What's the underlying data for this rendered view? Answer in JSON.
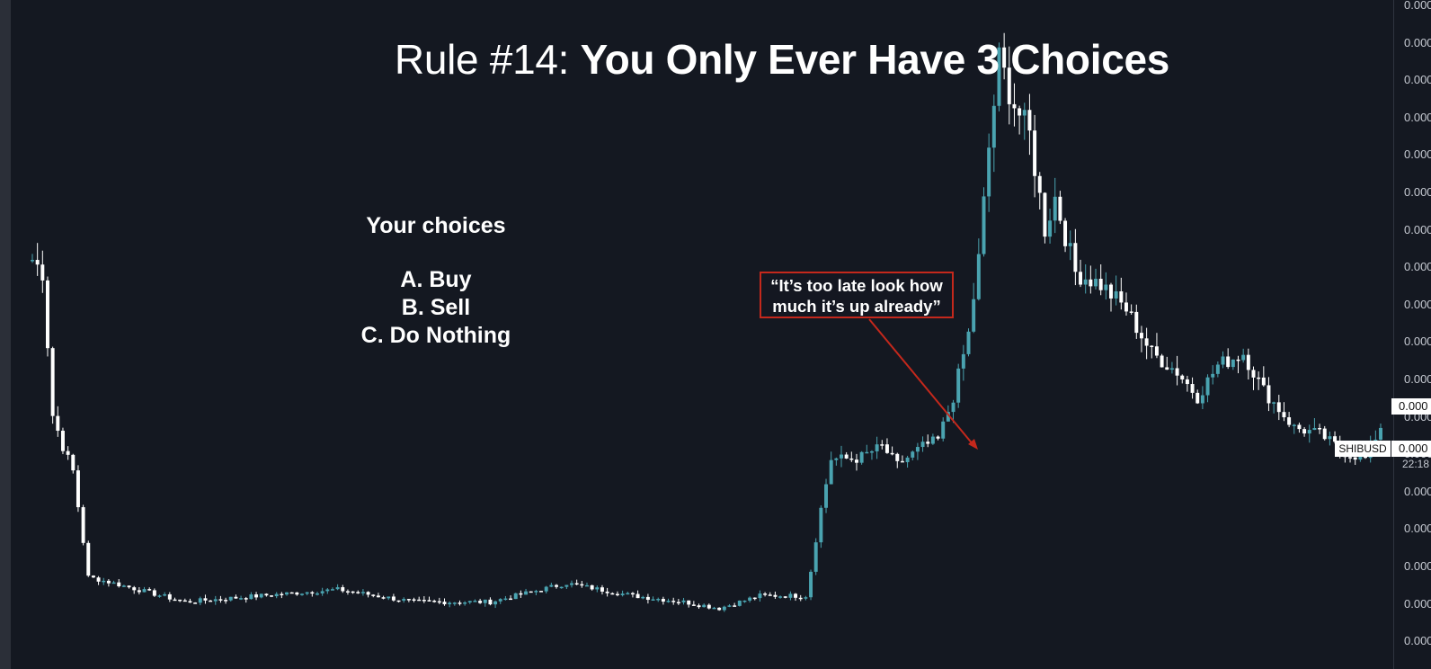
{
  "slide": {
    "title_prefix": "Rule #14: ",
    "title_main": "You Only Ever Have 3 Choices",
    "choices_heading": "Your choices",
    "choices": [
      "A. Buy",
      "B. Sell",
      "C. Do Nothing"
    ],
    "callout_line1": "“It’s too late look how",
    "callout_line2": "much it’s up already”"
  },
  "colors": {
    "background": "#141821",
    "bull_candle": "#4aa3b0",
    "bear_candle": "#ffffff",
    "callout": "#c4281c"
  },
  "axis": {
    "tick_labels": [
      "0.000",
      "0.000",
      "0.000",
      "0.000",
      "0.000",
      "0.000",
      "0.000",
      "0.000",
      "0.000",
      "0.000",
      "0.000",
      "0.000",
      "0.000",
      "0.000",
      "0.000",
      "0.000",
      "0.000",
      "0.000"
    ],
    "current_price_label": "0.000",
    "symbol_price_label": "0.000",
    "symbol": "SHIBUSD",
    "countdown": "22:18"
  },
  "chart_data": {
    "type": "candlestick",
    "symbol": "SHIBUSD",
    "ylim": [
      0,
      100
    ],
    "knots": [
      [
        0,
        60
      ],
      [
        2,
        58
      ],
      [
        4,
        35
      ],
      [
        6,
        30
      ],
      [
        8,
        26
      ],
      [
        11,
        9
      ],
      [
        16,
        8
      ],
      [
        30,
        5
      ],
      [
        45,
        6
      ],
      [
        60,
        7
      ],
      [
        75,
        5
      ],
      [
        90,
        5
      ],
      [
        105,
        8
      ],
      [
        118,
        6
      ],
      [
        128,
        5
      ],
      [
        135,
        4
      ],
      [
        143,
        6
      ],
      [
        148,
        6
      ],
      [
        152,
        6
      ],
      [
        153,
        10
      ],
      [
        155,
        20
      ],
      [
        157,
        28
      ],
      [
        162,
        28
      ],
      [
        167,
        30
      ],
      [
        170,
        27
      ],
      [
        175,
        30
      ],
      [
        178,
        31
      ],
      [
        181,
        38
      ],
      [
        184,
        48
      ],
      [
        186,
        60
      ],
      [
        188,
        78
      ],
      [
        190,
        92
      ],
      [
        193,
        85
      ],
      [
        196,
        80
      ],
      [
        199,
        65
      ],
      [
        201,
        70
      ],
      [
        205,
        58
      ],
      [
        210,
        56
      ],
      [
        215,
        52
      ],
      [
        220,
        45
      ],
      [
        225,
        42
      ],
      [
        229,
        38
      ],
      [
        233,
        43
      ],
      [
        238,
        45
      ],
      [
        242,
        39
      ],
      [
        248,
        33
      ],
      [
        253,
        32
      ],
      [
        258,
        29
      ],
      [
        262,
        28
      ],
      [
        266,
        35
      ]
    ],
    "candle_count": 266
  }
}
